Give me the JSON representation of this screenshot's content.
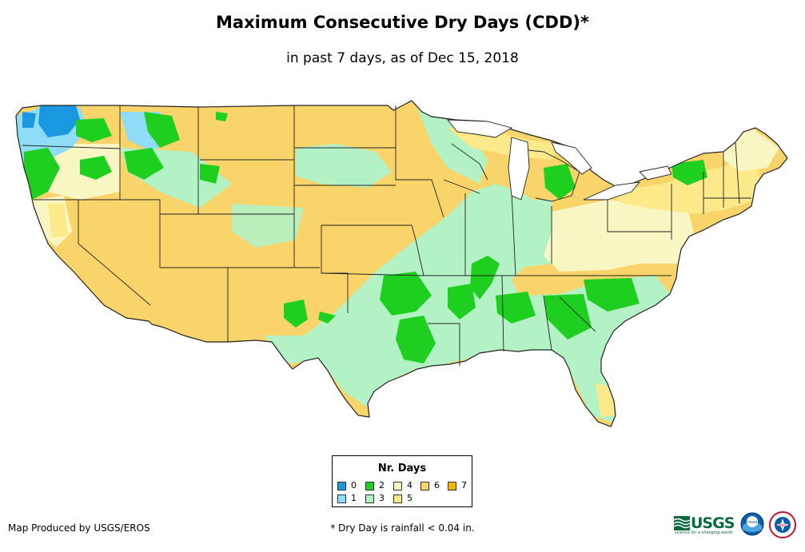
{
  "title": "Maximum Consecutive Dry Days (CDD)*",
  "subtitle": "in past 7 days, as of Dec 15, 2018",
  "legend": {
    "title": "Nr. Days",
    "items": [
      {
        "label": "0",
        "color": "#1a98e0"
      },
      {
        "label": "1",
        "color": "#8fdcf7"
      },
      {
        "label": "2",
        "color": "#1fcf1f"
      },
      {
        "label": "3",
        "color": "#b3f2c4"
      },
      {
        "label": "4",
        "color": "#f8f6c2"
      },
      {
        "label": "5",
        "color": "#fbe98a"
      },
      {
        "label": "6",
        "color": "#f8d46a"
      },
      {
        "label": "7",
        "color": "#f5b800"
      }
    ]
  },
  "credits": {
    "producer": "Map Produced by USGS/EROS",
    "footnote": "* Dry Day is rainfall < 0.04 in.",
    "usgs_text": "USGS",
    "usgs_tagline": "science for a changing world",
    "logo_noaa": "noaa",
    "logo_nws": "NWS"
  },
  "icons": {
    "usgs": "usgs-logo-icon",
    "noaa": "noaa-logo-icon",
    "nws": "nws-logo-icon"
  }
}
